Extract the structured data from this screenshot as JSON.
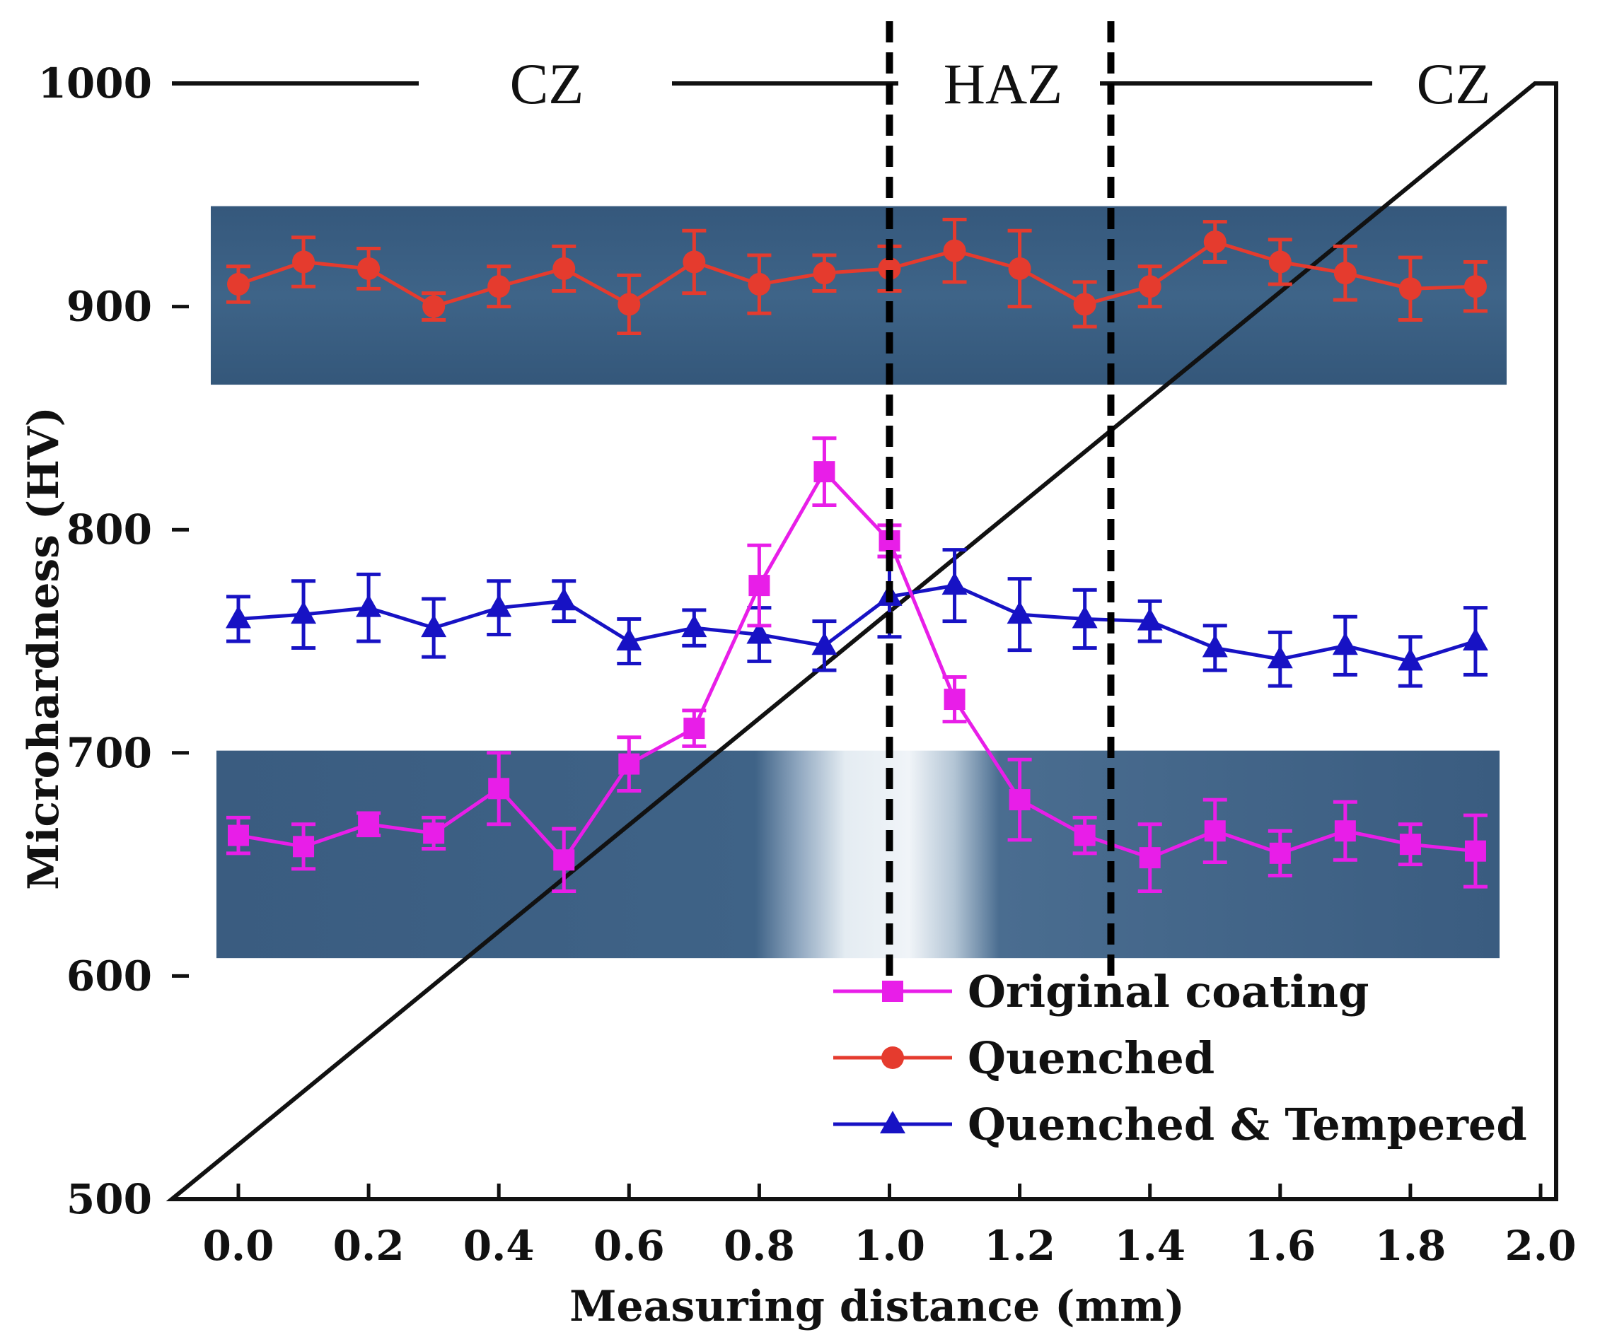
{
  "chart_data": {
    "type": "line",
    "xlabel": "Measuring distance (mm)",
    "ylabel": "Microhardness (HV)",
    "xlim": [
      -0.05,
      2.0
    ],
    "ylim": [
      500,
      1000
    ],
    "xticks": [
      0.0,
      0.2,
      0.4,
      0.6,
      0.8,
      1.0,
      1.2,
      1.4,
      1.6,
      1.8,
      2.0
    ],
    "xtick_labels": [
      "0.0",
      "0.2",
      "0.4",
      "0.6",
      "0.8",
      "1.0",
      "1.2",
      "1.4",
      "1.6",
      "1.8",
      "2.0"
    ],
    "yticks": [
      500,
      600,
      700,
      800,
      900,
      1000
    ],
    "ytick_labels": [
      "500",
      "600",
      "700",
      "800",
      "900",
      "1000"
    ],
    "x": [
      0.0,
      0.1,
      0.2,
      0.3,
      0.4,
      0.5,
      0.6,
      0.7,
      0.8,
      0.9,
      1.0,
      1.1,
      1.2,
      1.3,
      1.4,
      1.5,
      1.6,
      1.7,
      1.8,
      1.9
    ],
    "series": [
      {
        "name": "Original coating",
        "color": "#e81ee8",
        "marker": "square",
        "values": [
          663,
          658,
          668,
          664,
          684,
          652,
          695,
          711,
          775,
          826,
          795,
          724,
          679,
          663,
          653,
          665,
          655,
          665,
          659,
          656
        ],
        "errors": [
          8,
          10,
          5,
          7,
          16,
          14,
          12,
          8,
          18,
          15,
          7,
          10,
          18,
          8,
          15,
          14,
          10,
          13,
          9,
          16
        ]
      },
      {
        "name": "Quenched",
        "color": "#e53b2e",
        "marker": "circle",
        "values": [
          910,
          920,
          917,
          900,
          909,
          917,
          901,
          920,
          910,
          915,
          917,
          925,
          917,
          901,
          909,
          929,
          920,
          915,
          908,
          909
        ],
        "errors": [
          8,
          11,
          9,
          6,
          9,
          10,
          13,
          14,
          13,
          8,
          10,
          14,
          17,
          10,
          9,
          9,
          10,
          12,
          14,
          11
        ]
      },
      {
        "name": "Quenched & Tempered",
        "color": "#1712c4",
        "marker": "triangle",
        "values": [
          760,
          762,
          765,
          756,
          765,
          768,
          750,
          756,
          753,
          748,
          770,
          775,
          762,
          760,
          759,
          747,
          742,
          748,
          741,
          750
        ],
        "errors": [
          10,
          15,
          15,
          13,
          12,
          9,
          10,
          8,
          12,
          11,
          18,
          16,
          16,
          13,
          9,
          10,
          12,
          13,
          11,
          15
        ]
      }
    ],
    "zones": [
      "CZ",
      "HAZ",
      "CZ"
    ],
    "zone_boundaries": [
      1.0,
      1.34
    ],
    "background_bands": [
      [
        865,
        945
      ],
      [
        608,
        701
      ]
    ],
    "legend_location": "lower-right",
    "grid": false
  }
}
